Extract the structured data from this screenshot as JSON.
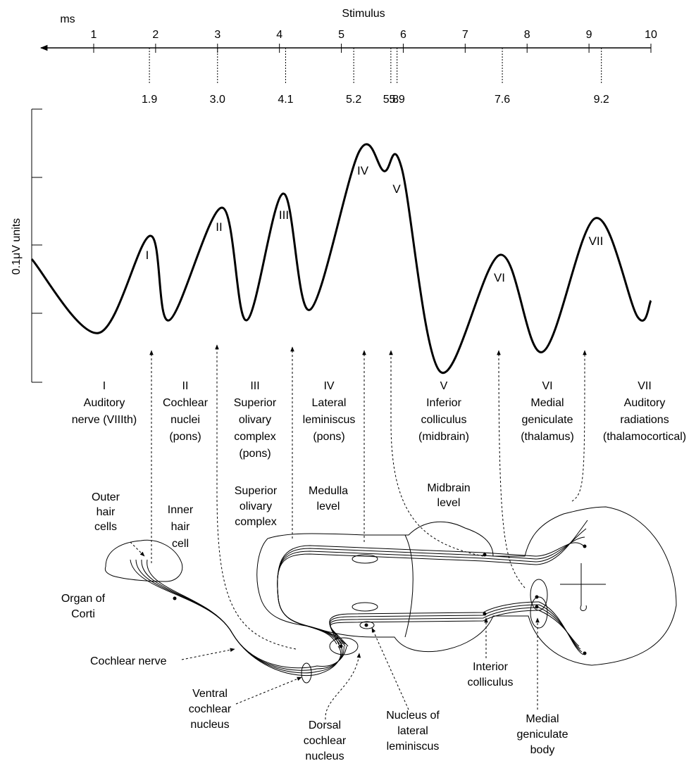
{
  "timeline": {
    "unit": "ms",
    "title": "Stimulus",
    "ticks": [
      1,
      2,
      3,
      4,
      5,
      6,
      7,
      8,
      9,
      10
    ],
    "latencies": [
      "1.9",
      "3.0",
      "4.1",
      "5.2",
      "5.8",
      "5.9",
      "7.6",
      "9.2"
    ]
  },
  "response": {
    "axis_label": "0.1μV units",
    "peaks": [
      "I",
      "II",
      "III",
      "IV",
      "V",
      "VI",
      "VII"
    ]
  },
  "generators": [
    {
      "wave": "I",
      "lines": [
        "Auditory",
        "nerve (VIIIth)"
      ]
    },
    {
      "wave": "II",
      "lines": [
        "Cochlear",
        "nuclei",
        "(pons)"
      ]
    },
    {
      "wave": "III",
      "lines": [
        "Superior",
        "olivary",
        "complex",
        "(pons)"
      ]
    },
    {
      "wave": "IV",
      "lines": [
        "Lateral",
        "leminiscus",
        "(pons)"
      ]
    },
    {
      "wave": "V",
      "lines": [
        "Inferior",
        "colliculus",
        "(midbrain)"
      ]
    },
    {
      "wave": "VI",
      "lines": [
        "Medial",
        "geniculate",
        "(thalamus)"
      ]
    },
    {
      "wave": "VII",
      "lines": [
        "Auditory",
        "radiations",
        "(thalamocortical)"
      ]
    }
  ],
  "anatomy": [
    {
      "lines": [
        "Outer",
        "hair",
        "cells"
      ]
    },
    {
      "lines": [
        "Inner",
        "hair",
        "cell"
      ]
    },
    {
      "lines": [
        "Superior",
        "olivary",
        "complex"
      ]
    },
    {
      "lines": [
        "Medulla",
        "level"
      ]
    },
    {
      "lines": [
        "Midbrain",
        "level"
      ]
    },
    {
      "lines": [
        "Organ of",
        "Corti"
      ]
    },
    {
      "lines": [
        "Cochlear nerve"
      ]
    },
    {
      "lines": [
        "Ventral",
        "cochlear",
        "nucleus"
      ]
    },
    {
      "lines": [
        "Dorsal",
        "cochlear",
        "nucleus"
      ]
    },
    {
      "lines": [
        "Nucleus of",
        "lateral",
        "leminiscus"
      ]
    },
    {
      "lines": [
        "Interior",
        "colliculus"
      ]
    },
    {
      "lines": [
        "Medial",
        "geniculate",
        "body"
      ]
    }
  ]
}
